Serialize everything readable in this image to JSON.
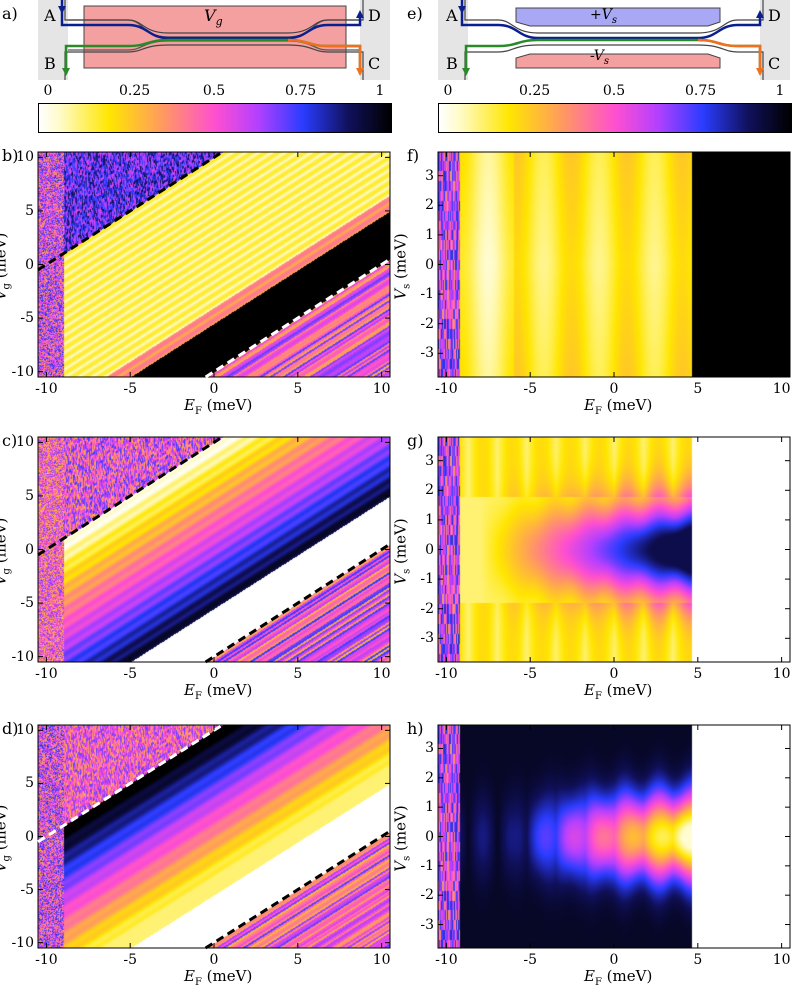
{
  "colormap": {
    "stops": [
      {
        "v": 0.0,
        "color": "#ffffff"
      },
      {
        "v": 0.06,
        "color": "#fffbc8"
      },
      {
        "v": 0.2,
        "color": "#ffe600"
      },
      {
        "v": 0.35,
        "color": "#ff9a60"
      },
      {
        "v": 0.5,
        "color": "#ff4fd0"
      },
      {
        "v": 0.62,
        "color": "#b540ff"
      },
      {
        "v": 0.75,
        "color": "#2b3cff"
      },
      {
        "v": 0.88,
        "color": "#10105a"
      },
      {
        "v": 1.0,
        "color": "#000000"
      }
    ]
  },
  "schematics": {
    "left": {
      "label": "a)",
      "gate_label": "V",
      "gate_sub": "g",
      "leads": [
        "A",
        "B",
        "C",
        "D"
      ]
    },
    "right": {
      "label": "e)",
      "top_gate_label": "+V",
      "bottom_gate_label": "-V",
      "gate_sub": "s",
      "leads": [
        "A",
        "B",
        "C",
        "D"
      ]
    }
  },
  "colorbar_ticks": [
    "0",
    "0.25",
    "0.5",
    "0.75",
    "1"
  ],
  "chart_data": [
    {
      "id": "b",
      "label": "b)",
      "type": "heatmap",
      "xlabel": "E",
      "xsub": "F",
      "xunit": "(meV)",
      "ylabel": "V",
      "ysub": "g",
      "yunit": "(meV)",
      "xlim": [
        -10.5,
        10.5
      ],
      "ylim": [
        -10.5,
        10.5
      ],
      "xticks": [
        "-10",
        "-5",
        "0",
        "5",
        "10"
      ],
      "yticks": [
        "10",
        "5",
        "0",
        "-5",
        "-10"
      ],
      "dashed_lines": [
        {
          "from": [
            -10.5,
            -0.5
          ],
          "to": [
            0.5,
            10.5
          ],
          "color": "black"
        },
        {
          "from": [
            -0.5,
            -10.5
          ],
          "to": [
            10.5,
            0.5
          ],
          "color": "white"
        }
      ],
      "regions": "white-yellow band between dashed lines, black band in lower right, noisy purple upper-left"
    },
    {
      "id": "c",
      "label": "c)",
      "type": "heatmap",
      "xlabel": "E",
      "xsub": "F",
      "xunit": "(meV)",
      "ylabel": "V",
      "ysub": "g",
      "yunit": "(meV)",
      "xlim": [
        -10.5,
        10.5
      ],
      "ylim": [
        -10.5,
        10.5
      ],
      "xticks": [
        "-10",
        "-5",
        "0",
        "5",
        "10"
      ],
      "yticks": [
        "10",
        "5",
        "0",
        "-5",
        "-10"
      ],
      "dashed_lines": [
        {
          "from": [
            -10.5,
            -0.5
          ],
          "to": [
            0.5,
            10.5
          ],
          "color": "black"
        },
        {
          "from": [
            -0.5,
            -10.5
          ],
          "to": [
            10.5,
            0.5
          ],
          "color": "black"
        }
      ],
      "regions": "gradient white to blue across diagonal band, white band lower right"
    },
    {
      "id": "d",
      "label": "d)",
      "type": "heatmap",
      "xlabel": "E",
      "xsub": "F",
      "xunit": "(meV)",
      "ylabel": "V",
      "ysub": "g",
      "yunit": "(meV)",
      "xlim": [
        -10.5,
        10.5
      ],
      "ylim": [
        -10.5,
        10.5
      ],
      "xticks": [
        "-10",
        "-5",
        "0",
        "5",
        "10"
      ],
      "yticks": [
        "10",
        "5",
        "0",
        "-5",
        "-10"
      ],
      "dashed_lines": [
        {
          "from": [
            -10.5,
            -0.5
          ],
          "to": [
            0.5,
            10.5
          ],
          "color": "white"
        },
        {
          "from": [
            -0.5,
            -10.5
          ],
          "to": [
            10.5,
            0.5
          ],
          "color": "black"
        }
      ],
      "regions": "black upper band fading to yellow, white band lower right"
    },
    {
      "id": "f",
      "label": "f)",
      "type": "heatmap",
      "xlabel": "E",
      "xsub": "F",
      "xunit": "(meV)",
      "ylabel": "V",
      "ysub": "s",
      "yunit": "(meV)",
      "xlim": [
        -10.5,
        10.5
      ],
      "ylim": [
        -3.8,
        3.8
      ],
      "xticks": [
        "-10",
        "-5",
        "0",
        "5",
        "10"
      ],
      "yticks": [
        "3",
        "2",
        "1",
        "0",
        "-1",
        "-2",
        "-3"
      ],
      "regions": "vertical yellow stripes up to E_F≈4.5, black for E_F>4.5"
    },
    {
      "id": "g",
      "label": "g)",
      "type": "heatmap",
      "xlabel": "E",
      "xsub": "F",
      "xunit": "(meV)",
      "ylabel": "V",
      "ysub": "s",
      "yunit": "(meV)",
      "xlim": [
        -10.5,
        10.5
      ],
      "ylim": [
        -3.8,
        3.8
      ],
      "xticks": [
        "-10",
        "-5",
        "0",
        "5",
        "10"
      ],
      "yticks": [
        "3",
        "2",
        "1",
        "0",
        "-1",
        "-2",
        "-3"
      ],
      "regions": "blue lobe centered at V_s=0 near E_F≈2, white for E_F>4.5"
    },
    {
      "id": "h",
      "label": "h)",
      "type": "heatmap",
      "xlabel": "E",
      "xsub": "F",
      "xunit": "(meV)",
      "ylabel": "V",
      "ysub": "s",
      "yunit": "(meV)",
      "xlim": [
        -10.5,
        10.5
      ],
      "ylim": [
        -3.8,
        3.8
      ],
      "xticks": [
        "-10",
        "-5",
        "0",
        "5",
        "10"
      ],
      "yticks": [
        "3",
        "2",
        "1",
        "0",
        "-1",
        "-2",
        "-3"
      ],
      "regions": "black/blue with pink-yellow lobe at V_s=0 up to E_F≈4.5, white beyond"
    }
  ]
}
